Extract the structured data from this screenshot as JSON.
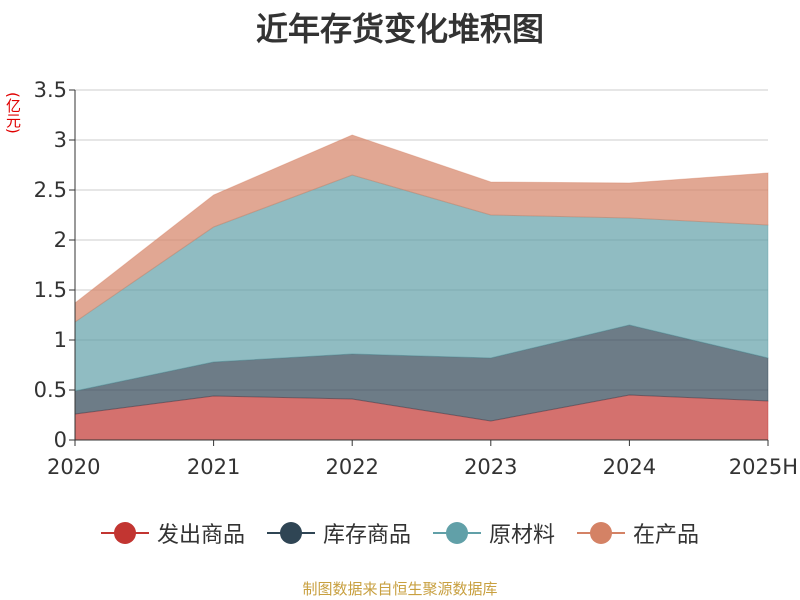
{
  "chart_data": {
    "type": "area",
    "stacked": true,
    "title": "近年存货变化堆积图",
    "unit": "(亿元)",
    "categories": [
      "2020",
      "2021",
      "2022",
      "2023",
      "2024",
      "2025H"
    ],
    "ylim": [
      0,
      3.5
    ],
    "yticks": [
      "0",
      "0.5",
      "1",
      "1.5",
      "2",
      "2.5",
      "3",
      "3.5"
    ],
    "grid": true,
    "legend_position": "bottom",
    "series": [
      {
        "name": "发出商品",
        "color": "#c23531",
        "values": [
          0.26,
          0.44,
          0.41,
          0.19,
          0.45,
          0.39
        ]
      },
      {
        "name": "库存商品",
        "color": "#2f4554",
        "values": [
          0.23,
          0.34,
          0.45,
          0.63,
          0.7,
          0.43
        ]
      },
      {
        "name": "原材料",
        "color": "#61a0a8",
        "values": [
          0.69,
          1.35,
          1.79,
          1.43,
          1.07,
          1.33
        ]
      },
      {
        "name": "在产品",
        "color": "#d48265",
        "values": [
          0.19,
          0.32,
          0.4,
          0.33,
          0.35,
          0.52
        ]
      }
    ]
  },
  "source_note": "制图数据来自恒生聚源数据库"
}
